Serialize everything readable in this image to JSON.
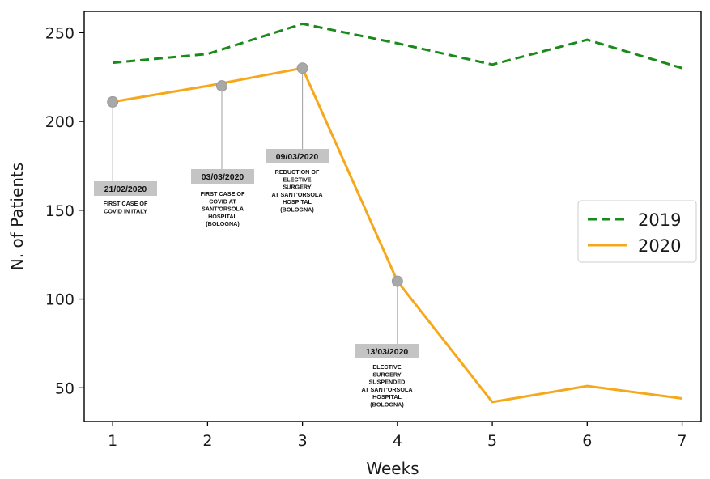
{
  "chart_data": {
    "type": "line",
    "title": "",
    "xlabel": "Weeks",
    "ylabel": "N. of Patients",
    "x": [
      1,
      2,
      3,
      4,
      5,
      6,
      7
    ],
    "xlim": [
      0.7,
      7.2
    ],
    "ylim": [
      31,
      262
    ],
    "xticks": [
      "1",
      "2",
      "3",
      "4",
      "5",
      "6",
      "7"
    ],
    "yticks": [
      "50",
      "100",
      "150",
      "200",
      "250"
    ],
    "ytick_values": [
      50,
      100,
      150,
      200,
      250
    ],
    "grid": false,
    "legend_position": "right",
    "series": [
      {
        "name": "2019",
        "values": [
          233,
          238,
          255,
          244,
          232,
          246,
          230
        ],
        "color": "#1a8a1a",
        "style": "dashed"
      },
      {
        "name": "2020",
        "values": [
          211,
          220,
          230,
          110,
          42,
          51,
          44
        ],
        "color": "#f5a81c",
        "style": "solid"
      }
    ],
    "annotations": [
      {
        "x": 1,
        "y": 211,
        "date": "21/02/2020",
        "lines": [
          "FIRST CASE OF",
          "COVID IN ITALY"
        ]
      },
      {
        "x": 2.15,
        "y": 220,
        "date": "03/03/2020",
        "lines": [
          "FIRST CASE OF",
          "COVID AT",
          "SANT'ORSOLA",
          "HOSPITAL",
          "(BOLOGNA)"
        ]
      },
      {
        "x": 3,
        "y": 230,
        "date": "09/03/2020",
        "lines": [
          "REDUCTION OF",
          "ELECTIVE",
          "SURGERY",
          "AT SANT'ORSOLA",
          "HOSPITAL",
          "(BOLOGNA)"
        ]
      },
      {
        "x": 4,
        "y": 110,
        "date": "13/03/2020",
        "lines": [
          "ELECTIVE",
          "SURGERY",
          "SUSPENDED",
          "AT SANT'ORSOLA",
          "HOSPITAL",
          "(BOLOGNA)"
        ]
      }
    ]
  }
}
